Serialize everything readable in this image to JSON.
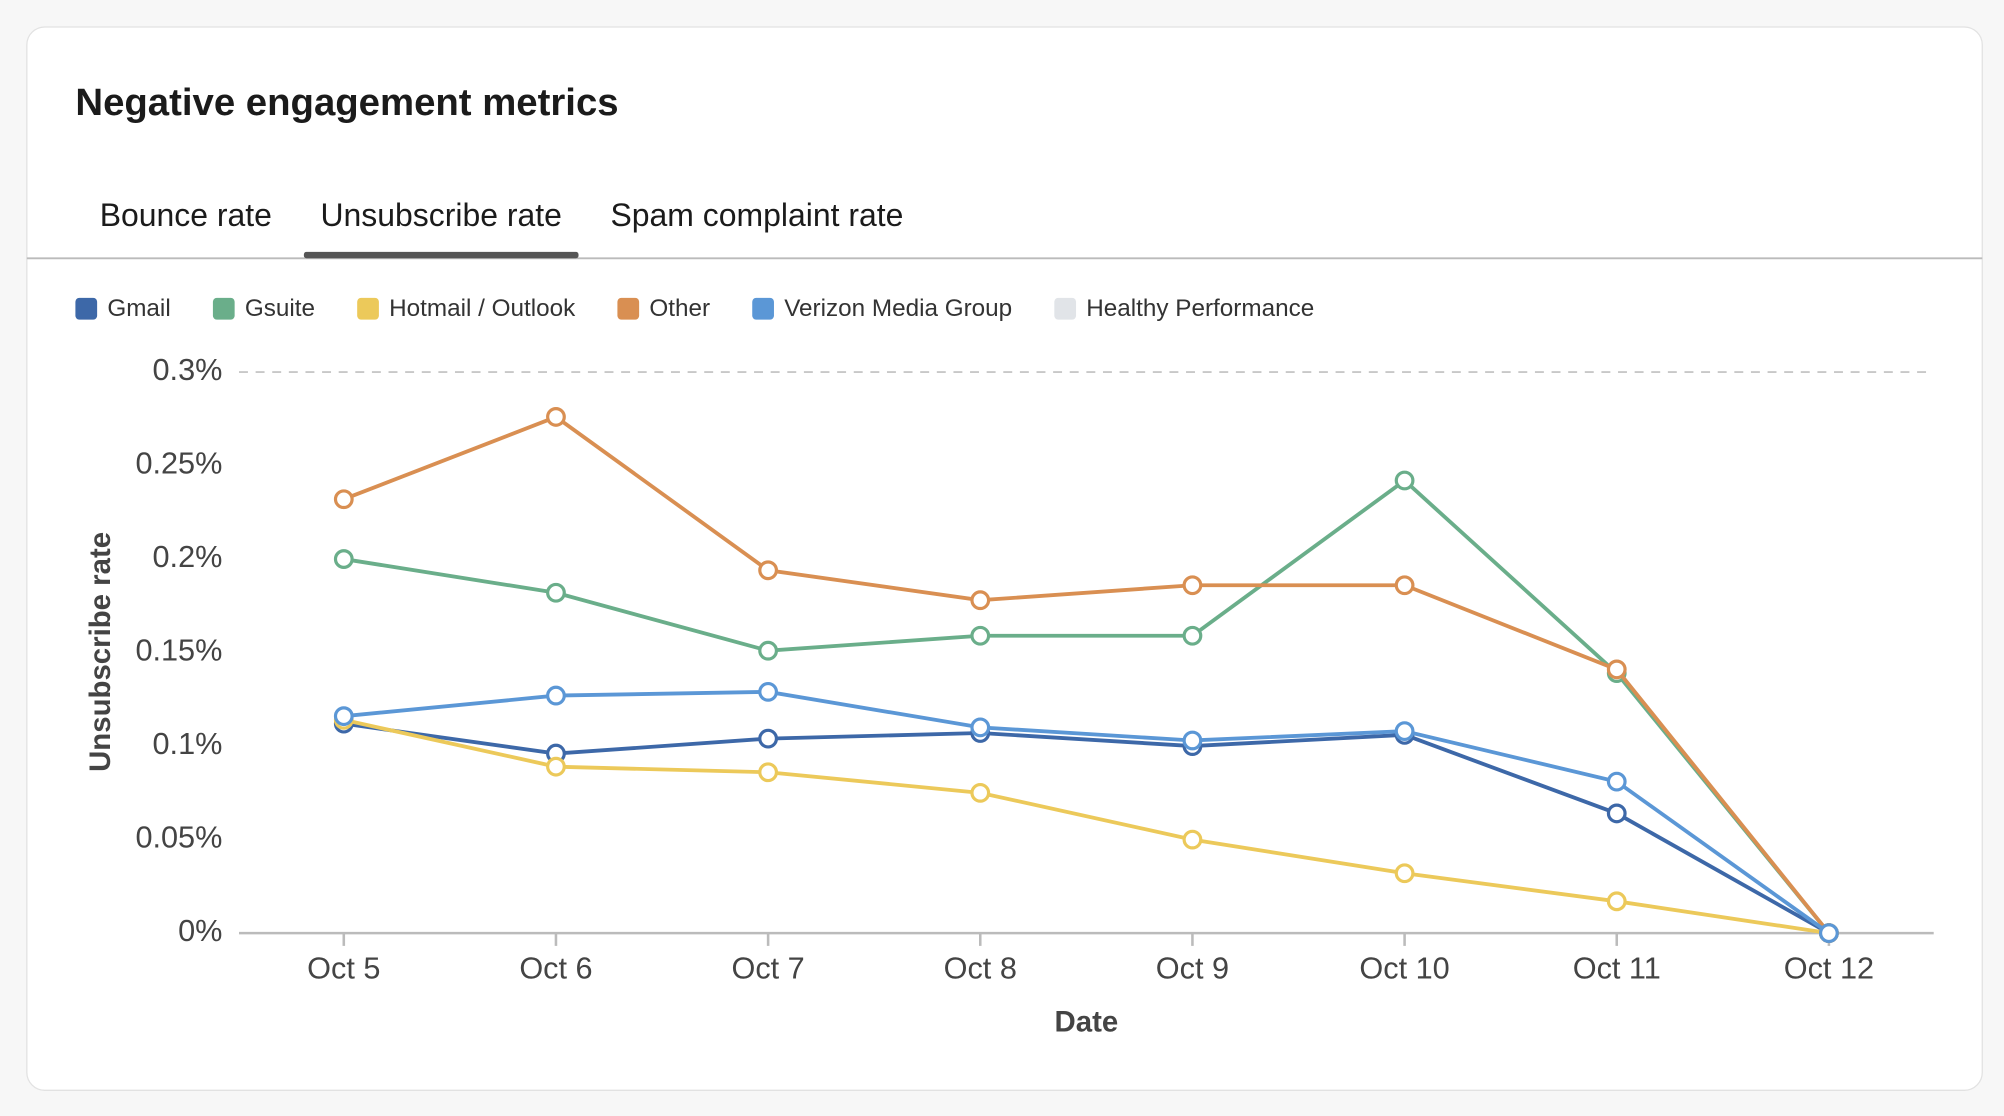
{
  "header": {
    "title": "Negative engagement metrics"
  },
  "tabs": {
    "items": [
      "Bounce rate",
      "Unsubscribe rate",
      "Spam complaint rate"
    ],
    "active": 1
  },
  "chart_data": {
    "type": "line",
    "x_label": "Date",
    "y_label": "Unsubscribe rate",
    "categories": [
      "Oct 5",
      "Oct 6",
      "Oct 7",
      "Oct 8",
      "Oct 9",
      "Oct 10",
      "Oct 11",
      "Oct 12"
    ],
    "ylim": [
      0,
      0.3
    ],
    "yticks": [
      {
        "value": 0,
        "label": "0%"
      },
      {
        "value": 0.05,
        "label": "0.05%"
      },
      {
        "value": 0.1,
        "label": "0.1%"
      },
      {
        "value": 0.15,
        "label": "0.15%"
      },
      {
        "value": 0.2,
        "label": "0.2%"
      },
      {
        "value": 0.25,
        "label": "0.25%"
      },
      {
        "value": 0.3,
        "label": "0.3%"
      }
    ],
    "series": [
      {
        "name": "Gmail",
        "color": "#3d68a8",
        "values": [
          0.112,
          0.096,
          0.104,
          0.107,
          0.1,
          0.106,
          0.064,
          0
        ]
      },
      {
        "name": "Gsuite",
        "color": "#6aae8a",
        "values": [
          0.2,
          0.182,
          0.151,
          0.159,
          0.159,
          0.242,
          0.139,
          0
        ]
      },
      {
        "name": "Hotmail / Outlook",
        "color": "#ecc95a",
        "values": [
          0.114,
          0.089,
          0.086,
          0.075,
          0.05,
          0.032,
          0.017,
          0
        ]
      },
      {
        "name": "Other",
        "color": "#d98f52",
        "values": [
          0.232,
          0.276,
          0.194,
          0.178,
          0.186,
          0.186,
          0.141,
          0
        ]
      },
      {
        "name": "Verizon Media Group",
        "color": "#5b97d6",
        "values": [
          0.116,
          0.127,
          0.129,
          0.11,
          0.103,
          0.108,
          0.081,
          0
        ]
      }
    ],
    "healthy_band": {
      "name": "Healthy Performance",
      "color": "#e1e4e8"
    }
  }
}
